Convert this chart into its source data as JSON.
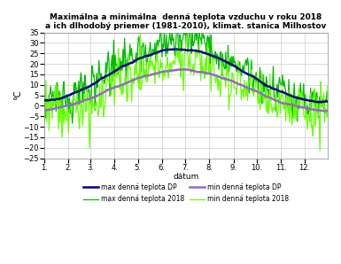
{
  "title_line1": "Maximálna a minimálna  denná teplota vzduchu v roku 2018",
  "title_line2": "a ich dlhodobý priemer (1981-2010), klimat. stanica Milhostov",
  "ylabel": "°C",
  "xlabel": "dátum",
  "ylim": [
    -25,
    35
  ],
  "yticks": [
    -25,
    -20,
    -15,
    -10,
    -5,
    0,
    5,
    10,
    15,
    20,
    25,
    30,
    35
  ],
  "colors": {
    "max_dp": "#00008B",
    "min_dp": "#9966CC",
    "max_2018": "#00BB00",
    "min_2018": "#66FF00"
  },
  "lw": {
    "dp": 1.8,
    "y2018": 0.9
  },
  "legend_labels": {
    "max_dp": "max denná teplota DP",
    "min_dp": "min denná teplota DP",
    "max_2018": "max denná teplota 2018",
    "min_2018": "min denná teplota 2018"
  },
  "xtick_positions": [
    1,
    32,
    60,
    91,
    121,
    152,
    182,
    213,
    244,
    274,
    305,
    335
  ],
  "xtick_labels": [
    "1.",
    "2.",
    "3.",
    "4.",
    "5.",
    "6.",
    "7.",
    "8.",
    "9.",
    "10.",
    "11.",
    "12."
  ],
  "background_color": "#FFFFFF",
  "grid_color": "#CCCCCC"
}
